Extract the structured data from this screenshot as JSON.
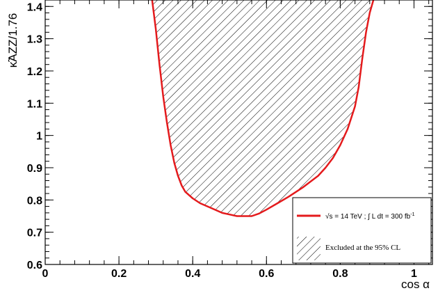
{
  "chart_data": {
    "type": "area",
    "xlabel": "cos α",
    "ylabel": "κ̃AZZ/1.76",
    "xlim": [
      0,
      1.05
    ],
    "ylim": [
      0.6,
      1.42
    ],
    "xticks": [
      0,
      0.2,
      0.4,
      0.6,
      0.8,
      1
    ],
    "xtick_labels": [
      "0",
      "0.2",
      "0.4",
      "0.6",
      "0.8",
      "1"
    ],
    "yticks": [
      0.6,
      0.7,
      0.8,
      0.9,
      1,
      1.1,
      1.2,
      1.3,
      1.4
    ],
    "ytick_labels": [
      "0.6",
      "0.7",
      "0.8",
      "0.9",
      "1",
      "1.1",
      "1.2",
      "1.3",
      "1.4"
    ],
    "series": [
      {
        "name": "√s = 14 TeV ; ∫ L dt = 300 fb⁻¹",
        "color": "#e41a1c",
        "x": [
          0.29,
          0.3,
          0.31,
          0.32,
          0.33,
          0.34,
          0.35,
          0.36,
          0.37,
          0.38,
          0.4,
          0.42,
          0.45,
          0.48,
          0.5,
          0.52,
          0.54,
          0.56,
          0.58,
          0.6,
          0.63,
          0.66,
          0.7,
          0.74,
          0.76,
          0.78,
          0.8,
          0.82,
          0.84,
          0.85,
          0.86,
          0.87,
          0.88,
          0.89
        ],
        "y": [
          1.42,
          1.33,
          1.22,
          1.12,
          1.04,
          0.97,
          0.915,
          0.875,
          0.845,
          0.825,
          0.805,
          0.79,
          0.775,
          0.76,
          0.755,
          0.75,
          0.75,
          0.75,
          0.758,
          0.77,
          0.79,
          0.81,
          0.84,
          0.875,
          0.9,
          0.93,
          0.97,
          1.02,
          1.09,
          1.15,
          1.24,
          1.32,
          1.38,
          1.42
        ]
      }
    ],
    "legend": {
      "placement": "bottom-right",
      "entries": [
        {
          "label_sqrt": "√s",
          "label_mid": " = 14 TeV ; ",
          "label_int": "∫",
          "label_rest": " L dt = 300 fb",
          "label_sup": "-1"
        },
        {
          "label": "Excluded at the 95% CL"
        }
      ]
    }
  }
}
